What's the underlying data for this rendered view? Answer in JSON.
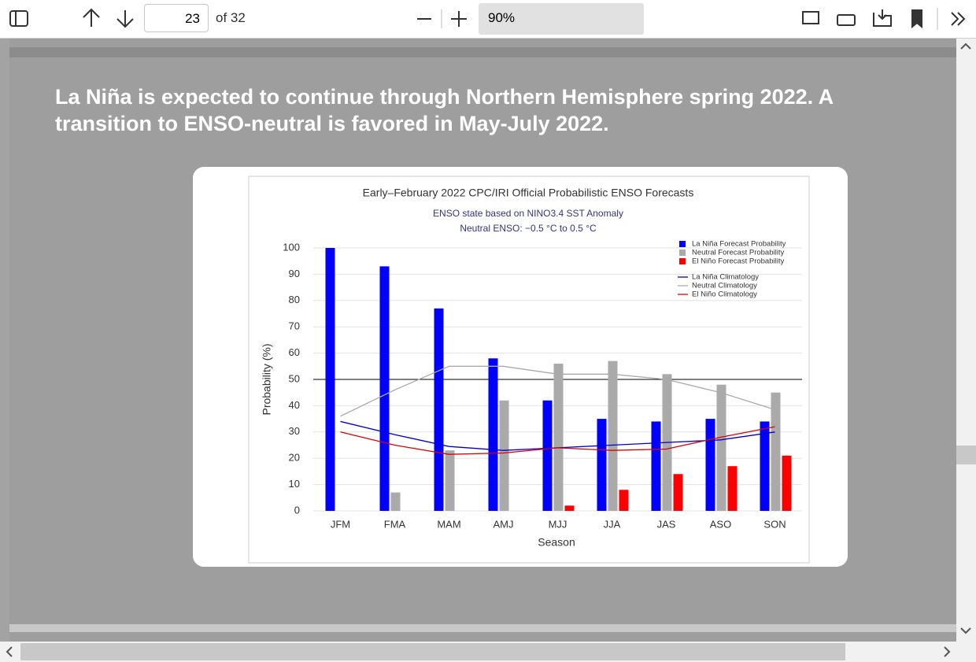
{
  "toolbar": {
    "page_number": "23",
    "page_count": "of 32",
    "zoom": "90%"
  },
  "slide": {
    "heading": "La Niña is expected to continue through Northern Hemisphere spring 2022.  A transition to ENSO-neutral is favored in May-July 2022."
  },
  "chart_data": {
    "type": "bar",
    "title": "Early–February 2022 CPC/IRI Official Probabilistic ENSO Forecasts",
    "subtitle": [
      "ENSO state based on NINO3.4 SST Anomaly",
      "Neutral ENSO: −0.5 °C to 0.5 °C"
    ],
    "x_label": "Season",
    "y_label": "Probability (%)",
    "categories": [
      "JFM",
      "FMA",
      "MAM",
      "AMJ",
      "MJJ",
      "JJA",
      "JAS",
      "ASO",
      "SON"
    ],
    "series": [
      {
        "name": "La Niña Forecast Probability",
        "type": "bar",
        "color": "#0000ff",
        "values": [
          100,
          93,
          77,
          58,
          42,
          35,
          34,
          35,
          34
        ]
      },
      {
        "name": "Neutral Forecast Probability",
        "type": "bar",
        "color": "#aaaaaa",
        "values": [
          0,
          7,
          23,
          42,
          56,
          57,
          52,
          48,
          45
        ]
      },
      {
        "name": "El Niño Forecast Probability",
        "type": "bar",
        "color": "#ff0000",
        "values": [
          0,
          0,
          0,
          0,
          2,
          8,
          14,
          17,
          21
        ]
      },
      {
        "name": "La Niña Climatology",
        "type": "line",
        "color": "#0000cc",
        "values": [
          34,
          29,
          24.5,
          23,
          24,
          25,
          26,
          27,
          30
        ]
      },
      {
        "name": "Neutral Climatology",
        "type": "line",
        "color": "#aaaaaa",
        "values": [
          36,
          46,
          55,
          55,
          52,
          52,
          50,
          45,
          38.5
        ]
      },
      {
        "name": "El Niño Climatology",
        "type": "line",
        "color": "#dd0000",
        "values": [
          30,
          25,
          21.5,
          22,
          24,
          23,
          23.5,
          28,
          32
        ]
      }
    ],
    "reference_line": 50,
    "ylim": [
      0,
      100
    ],
    "yticks": [
      0,
      10,
      20,
      30,
      40,
      50,
      60,
      70,
      80,
      90,
      100
    ],
    "grid": true
  }
}
